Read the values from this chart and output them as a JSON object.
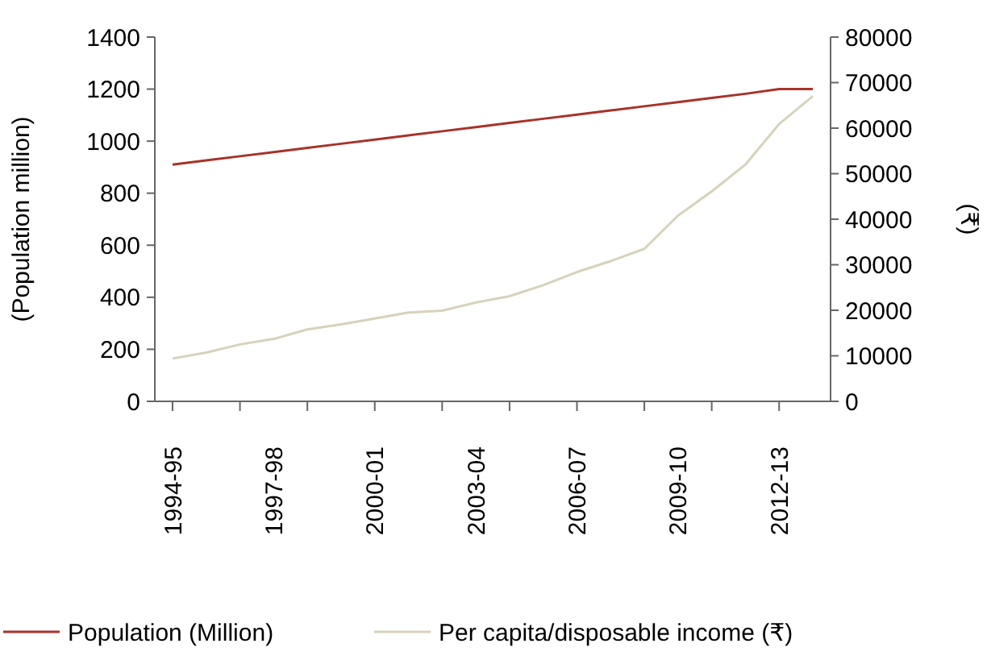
{
  "chart_data": {
    "type": "line",
    "ylabel": "(Population million)",
    "y2label": "(₹)",
    "categories": [
      "1994-95",
      null,
      null,
      "1997-98",
      null,
      null,
      "2000-01",
      null,
      null,
      "2003-04",
      null,
      null,
      "2006-07",
      null,
      null,
      "2009-10",
      null,
      null,
      "2012-13",
      null
    ],
    "series": [
      {
        "name": "Population (Million)",
        "color": "#a83228",
        "values": [
          910,
          926,
          942,
          958,
          974,
          990,
          1006,
          1022,
          1038,
          1054,
          1070,
          1086,
          1102,
          1118,
          1134,
          1150,
          1166,
          1182,
          1200,
          1200
        ]
      },
      {
        "name": "Per capita/disposable income (₹)",
        "color": "#d6d2bc",
        "axis": "y2",
        "values": [
          9400,
          10700,
          12500,
          13700,
          15800,
          16900,
          18200,
          19500,
          19900,
          21700,
          23100,
          25500,
          28400,
          30800,
          33500,
          40800,
          46100,
          52000,
          60900,
          67000
        ]
      }
    ],
    "ylim": [
      0,
      1400
    ],
    "yticks": [
      0,
      200,
      400,
      600,
      800,
      1000,
      1200,
      1400
    ],
    "y2lim": [
      0,
      80000
    ],
    "y2ticks": [
      0,
      10000,
      20000,
      30000,
      40000,
      50000,
      60000,
      70000,
      80000
    ],
    "grid": false,
    "legend": "bottom",
    "marker": "none",
    "line_style": "solid"
  }
}
